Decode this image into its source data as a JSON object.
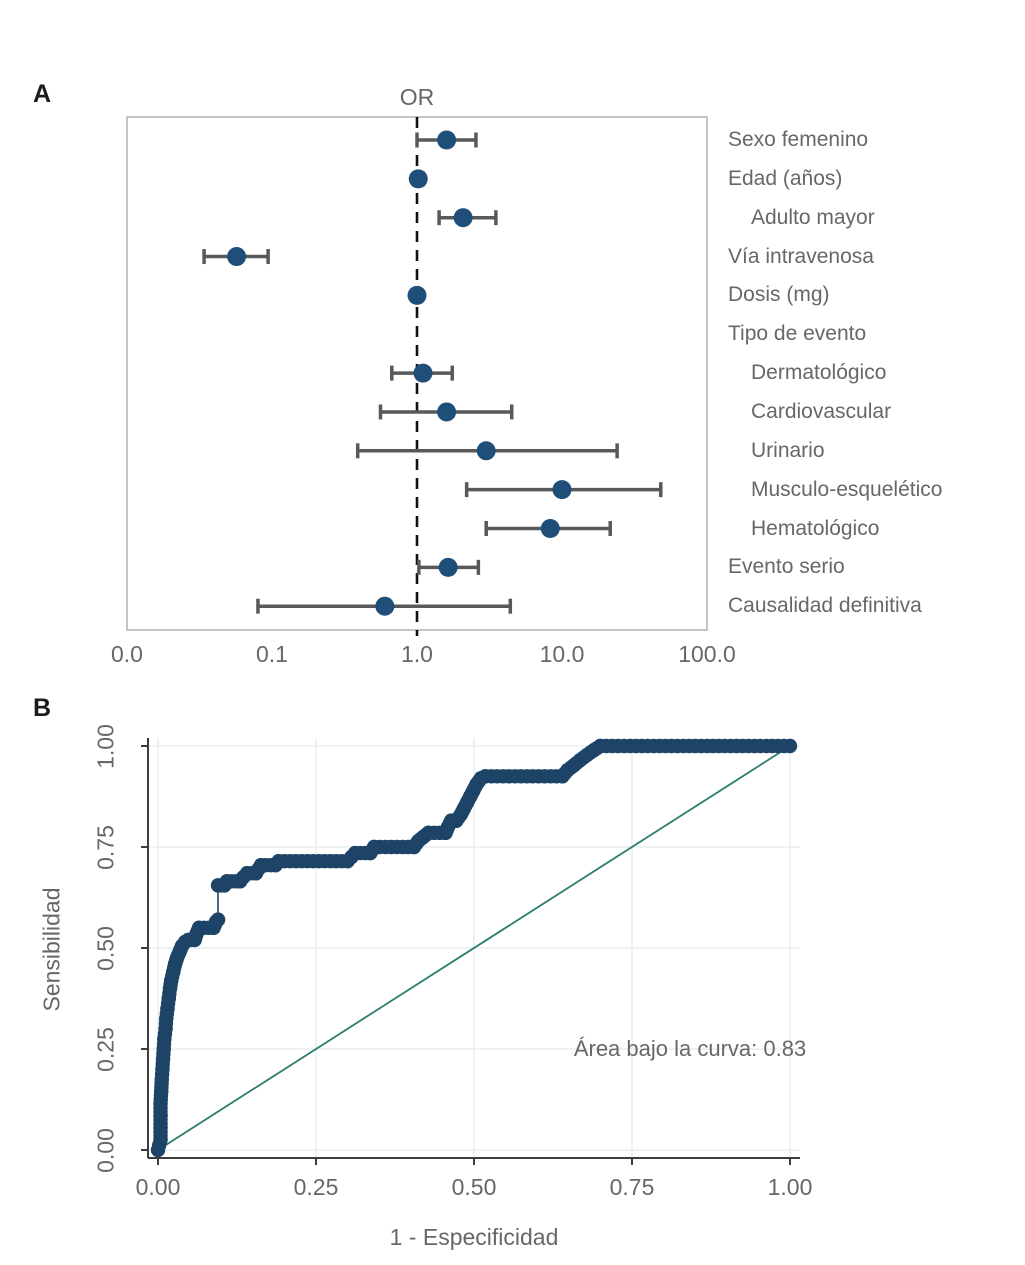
{
  "colors": {
    "forest_marker": "#1f4e79",
    "roc_marker": "#1d4467",
    "error_bar": "#58595b",
    "dashed_reference": "#111111",
    "frame": "#b2b2b2",
    "diagonal_reference": "#2b7d6d",
    "gridline": "#e7eff0",
    "spine": "#3d3d3d",
    "text_gray": "#676767",
    "panel_letter": "#1b1b1b"
  },
  "chart_data": [
    {
      "type": "scatter",
      "subtype": "forest-plot",
      "panel_label": "A",
      "title": "OR",
      "x_scale": "log",
      "reference_line": 1.0,
      "x_ticks": [
        {
          "label": "0.0",
          "value": 0.01
        },
        {
          "label": "0.1",
          "value": 0.1
        },
        {
          "label": "1.0",
          "value": 1
        },
        {
          "label": "10.0",
          "value": 10
        },
        {
          "label": "100.0",
          "value": 100
        }
      ],
      "rows": [
        {
          "label": "Sexo femenino",
          "indent": false,
          "or": 1.6,
          "ci_low": 1.0,
          "ci_high": 2.55
        },
        {
          "label": "Edad (años)",
          "indent": false,
          "or": 1.02,
          "ci_low": 0.95,
          "ci_high": 1.1
        },
        {
          "label": "Adulto mayor",
          "indent": true,
          "or": 2.08,
          "ci_low": 1.42,
          "ci_high": 3.5
        },
        {
          "label": "Vía intravenosa",
          "indent": false,
          "or": 0.057,
          "ci_low": 0.034,
          "ci_high": 0.094
        },
        {
          "label": "Dosis (mg)",
          "indent": false,
          "or": 1.0,
          "ci_low": 0.95,
          "ci_high": 1.06
        },
        {
          "label": "Tipo de evento",
          "indent": false,
          "or": null,
          "ci_low": null,
          "ci_high": null
        },
        {
          "label": "Dermatológico",
          "indent": true,
          "or": 1.1,
          "ci_low": 0.67,
          "ci_high": 1.75
        },
        {
          "label": "Cardiovascular",
          "indent": true,
          "or": 1.6,
          "ci_low": 0.56,
          "ci_high": 4.5
        },
        {
          "label": "Urinario",
          "indent": true,
          "or": 3.0,
          "ci_low": 0.39,
          "ci_high": 24.0
        },
        {
          "label": "Musculo-esquelético",
          "indent": true,
          "or": 10.0,
          "ci_low": 2.2,
          "ci_high": 48.0
        },
        {
          "label": "Hematológico",
          "indent": true,
          "or": 8.3,
          "ci_low": 3.0,
          "ci_high": 21.5
        },
        {
          "label": "Evento serio",
          "indent": false,
          "or": 1.64,
          "ci_low": 1.03,
          "ci_high": 2.65
        },
        {
          "label": "Causalidad definitiva",
          "indent": false,
          "or": 0.6,
          "ci_low": 0.08,
          "ci_high": 4.4
        }
      ]
    },
    {
      "type": "line",
      "subtype": "roc-curve",
      "panel_label": "B",
      "xlabel": "1 - Especificidad",
      "ylabel": "Sensibilidad",
      "annotation": "Área bajo la curva: 0.83",
      "auc": 0.83,
      "xlim": [
        0,
        1
      ],
      "ylim": [
        0,
        1
      ],
      "grid": true,
      "diagonal_reference": [
        [
          0,
          0
        ],
        [
          1,
          1
        ]
      ],
      "x_ticks": [
        {
          "label": "0.00",
          "value": 0
        },
        {
          "label": "0.25",
          "value": 0.25
        },
        {
          "label": "0.50",
          "value": 0.5
        },
        {
          "label": "0.75",
          "value": 0.75
        },
        {
          "label": "1.00",
          "value": 1
        }
      ],
      "y_ticks": [
        {
          "label": "0.00",
          "value": 0
        },
        {
          "label": "0.25",
          "value": 0.25
        },
        {
          "label": "0.50",
          "value": 0.5
        },
        {
          "label": "0.75",
          "value": 0.75
        },
        {
          "label": "1.00",
          "value": 1
        }
      ],
      "roc_points": [
        [
          0.0,
          0.0
        ],
        [
          0.004,
          0.025
        ],
        [
          0.004,
          0.055
        ],
        [
          0.004,
          0.085
        ],
        [
          0.004,
          0.115
        ],
        [
          0.005,
          0.145
        ],
        [
          0.006,
          0.175
        ],
        [
          0.007,
          0.2
        ],
        [
          0.008,
          0.225
        ],
        [
          0.009,
          0.25
        ],
        [
          0.01,
          0.275
        ],
        [
          0.012,
          0.3
        ],
        [
          0.013,
          0.325
        ],
        [
          0.015,
          0.35
        ],
        [
          0.017,
          0.375
        ],
        [
          0.019,
          0.4
        ],
        [
          0.021,
          0.42
        ],
        [
          0.024,
          0.44
        ],
        [
          0.027,
          0.46
        ],
        [
          0.03,
          0.475
        ],
        [
          0.034,
          0.49
        ],
        [
          0.038,
          0.505
        ],
        [
          0.043,
          0.515
        ],
        [
          0.048,
          0.52
        ],
        [
          0.058,
          0.52
        ],
        [
          0.061,
          0.535
        ],
        [
          0.065,
          0.55
        ],
        [
          0.088,
          0.55
        ],
        [
          0.092,
          0.565
        ],
        [
          0.095,
          0.57
        ],
        [
          0.095,
          0.655
        ],
        [
          0.105,
          0.655
        ],
        [
          0.109,
          0.665
        ],
        [
          0.13,
          0.665
        ],
        [
          0.135,
          0.675
        ],
        [
          0.141,
          0.685
        ],
        [
          0.155,
          0.685
        ],
        [
          0.159,
          0.695
        ],
        [
          0.163,
          0.705
        ],
        [
          0.186,
          0.705
        ],
        [
          0.191,
          0.715
        ],
        [
          0.3,
          0.715
        ],
        [
          0.306,
          0.725
        ],
        [
          0.312,
          0.735
        ],
        [
          0.336,
          0.735
        ],
        [
          0.342,
          0.75
        ],
        [
          0.405,
          0.75
        ],
        [
          0.412,
          0.765
        ],
        [
          0.42,
          0.775
        ],
        [
          0.428,
          0.785
        ],
        [
          0.455,
          0.785
        ],
        [
          0.459,
          0.8
        ],
        [
          0.464,
          0.815
        ],
        [
          0.472,
          0.815
        ],
        [
          0.479,
          0.83
        ],
        [
          0.484,
          0.845
        ],
        [
          0.489,
          0.86
        ],
        [
          0.494,
          0.875
        ],
        [
          0.499,
          0.89
        ],
        [
          0.504,
          0.905
        ],
        [
          0.511,
          0.92
        ],
        [
          0.518,
          0.925
        ],
        [
          0.64,
          0.925
        ],
        [
          0.648,
          0.94
        ],
        [
          0.658,
          0.952
        ],
        [
          0.668,
          0.965
        ],
        [
          0.679,
          0.978
        ],
        [
          0.69,
          0.99
        ],
        [
          0.7,
          1.0
        ],
        [
          1.0,
          1.0
        ]
      ]
    }
  ]
}
